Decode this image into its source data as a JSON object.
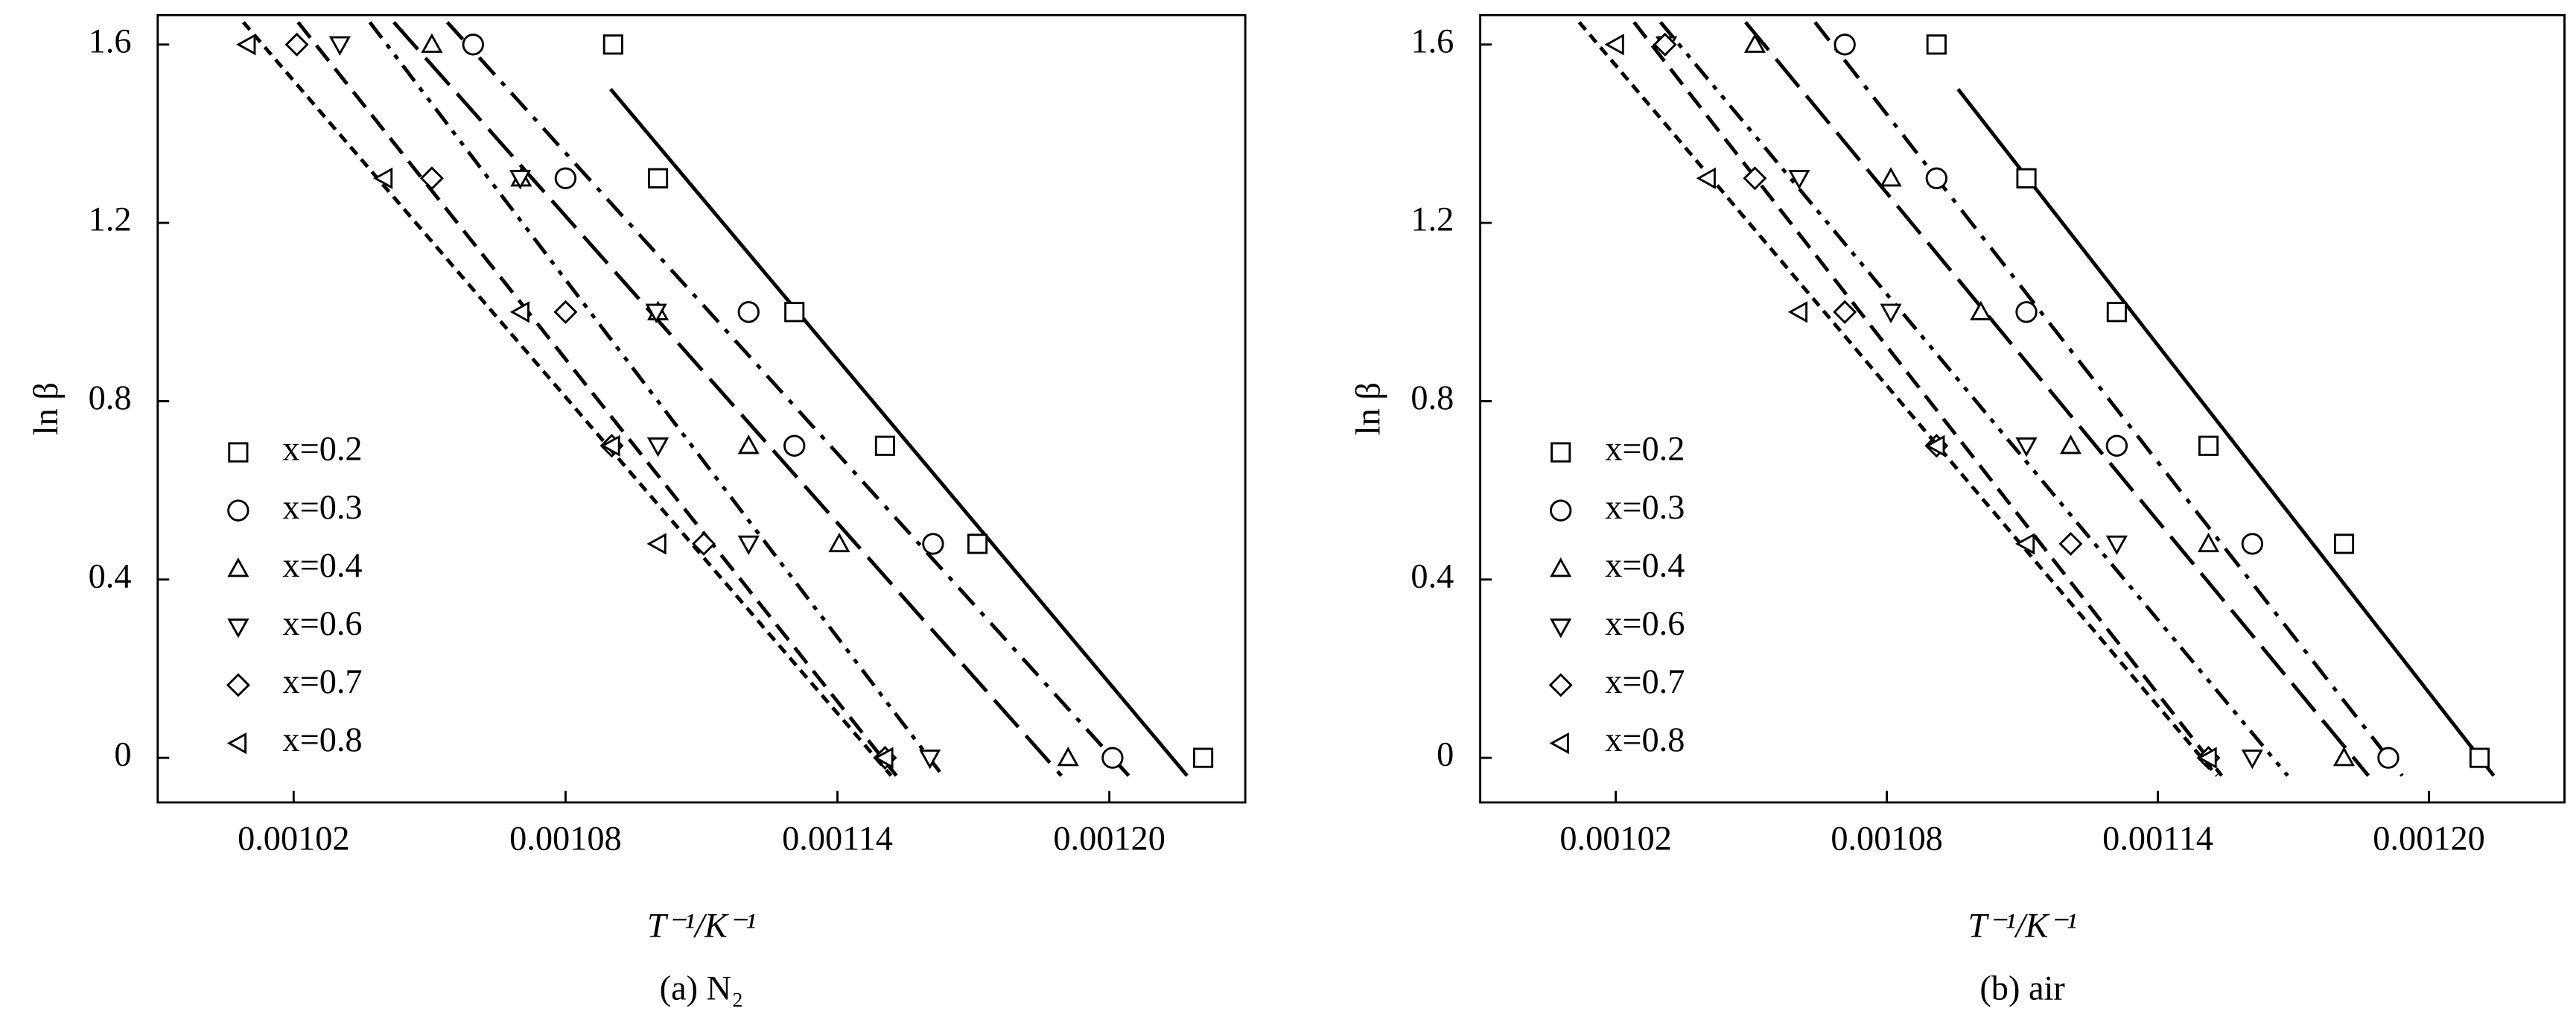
{
  "chart_data": [
    {
      "type": "scatter",
      "caption": "(a) N₂",
      "x_label": "T⁻¹/K⁻¹",
      "y_label": "ln β",
      "xlim": [
        0.00099,
        0.00123
      ],
      "ylim": [
        -0.1,
        1.666
      ],
      "xticks": [
        0.00102,
        0.00108,
        0.00114,
        {
          "value": 0.0012,
          "label": "0.00120"
        }
      ],
      "yticks": [
        0,
        0.4,
        0.8,
        1.2,
        1.6
      ],
      "legend": "lower left",
      "series": [
        {
          "name": "x=0.2",
          "marker": "square",
          "line_style": "solid",
          "color": "#000000",
          "x": [
            0.0010905,
            0.0011004,
            0.0011305,
            0.0011505,
            0.0011709,
            0.0012207
          ],
          "values": [
            1.6,
            1.3,
            1.0,
            0.7,
            0.48,
            0
          ]
        },
        {
          "name": "x=0.3",
          "marker": "circle",
          "line_style": "dash-dot",
          "color": "#000000",
          "x": [
            0.0010596,
            0.00108,
            0.0011204,
            0.0011305,
            0.0011611,
            0.0012007
          ],
          "values": [
            1.6,
            1.3,
            1.0,
            0.7,
            0.48,
            0
          ]
        },
        {
          "name": "x=0.4",
          "marker": "triangle-up",
          "line_style": "long-dash",
          "color": "#000000",
          "x": [
            0.0010505,
            0.0010702,
            0.0011004,
            0.0011204,
            0.0011404,
            0.0011909
          ],
          "values": [
            1.6,
            1.3,
            1.0,
            0.7,
            0.48,
            0
          ]
        },
        {
          "name": "x=0.6",
          "marker": "triangle-down",
          "line_style": "dash-dot-dot",
          "color": "#000000",
          "x": [
            0.0010302,
            0.00107,
            0.0011,
            0.0011004,
            0.0011204,
            0.0011604
          ],
          "values": [
            1.6,
            1.3,
            1.0,
            0.7,
            0.48,
            0
          ]
        },
        {
          "name": "x=0.7",
          "marker": "diamond",
          "line_style": "mid-dash",
          "color": "#000000",
          "x": [
            0.0010207,
            0.0010505,
            0.00108,
            0.0010902,
            0.0011105,
            0.0011505
          ],
          "values": [
            1.6,
            1.3,
            1.0,
            0.7,
            0.48,
            0
          ]
        },
        {
          "name": "x=0.8",
          "marker": "triangle-left",
          "line_style": "short-dash",
          "color": "#000000",
          "x": [
            0.0010098,
            0.00104,
            0.0010702,
            0.0010902,
            0.0011004,
            0.0011505
          ],
          "values": [
            1.6,
            1.3,
            1.0,
            0.7,
            0.48,
            0
          ]
        }
      ]
    },
    {
      "type": "scatter",
      "caption": "(b) air",
      "x_label": "T⁻¹/K⁻¹",
      "y_label": "ln β",
      "xlim": [
        0.00099,
        0.00123
      ],
      "ylim": [
        -0.1,
        1.666
      ],
      "xticks": [
        0.00102,
        0.00108,
        0.00114,
        {
          "value": 0.0012,
          "label": "0.00120"
        }
      ],
      "yticks": [
        0,
        0.4,
        0.8,
        1.2,
        1.6
      ],
      "legend": "lower left",
      "series": [
        {
          "name": "x=0.2",
          "marker": "square",
          "line_style": "solid",
          "color": "#000000",
          "x": [
            0.001091,
            0.0011109,
            0.0011309,
            0.0011512,
            0.0011812,
            0.0012112
          ],
          "values": [
            1.6,
            1.3,
            1.0,
            0.7,
            0.48,
            0
          ]
        },
        {
          "name": "x=0.3",
          "marker": "circle",
          "line_style": "dash-dot",
          "color": "#000000",
          "x": [
            0.0010707,
            0.001091,
            0.0011109,
            0.0011309,
            0.0011609,
            0.001191
          ],
          "values": [
            1.6,
            1.3,
            1.0,
            0.7,
            0.48,
            0
          ]
        },
        {
          "name": "x=0.4",
          "marker": "triangle-up",
          "line_style": "long-dash",
          "color": "#000000",
          "x": [
            0.0010508,
            0.0010809,
            0.0011008,
            0.0011207,
            0.0011512,
            0.0011812
          ],
          "values": [
            1.6,
            1.3,
            1.0,
            0.7,
            0.48,
            0
          ]
        },
        {
          "name": "x=0.6",
          "marker": "triangle-down",
          "line_style": "dash-dot-dot",
          "color": "#000000",
          "x": [
            0.0010312,
            0.0010606,
            0.0010809,
            0.0011109,
            0.0011309,
            0.0011609
          ],
          "values": [
            1.6,
            1.3,
            1.0,
            0.7,
            0.48,
            0
          ]
        },
        {
          "name": "x=0.7",
          "marker": "diamond",
          "line_style": "mid-dash",
          "color": "#000000",
          "x": [
            0.0010309,
            0.0010508,
            0.0010707,
            0.001091,
            0.0011207,
            0.0011512
          ],
          "values": [
            1.6,
            1.3,
            1.0,
            0.7,
            0.48,
            0
          ]
        },
        {
          "name": "x=0.8",
          "marker": "triangle-left",
          "line_style": "short-dash",
          "color": "#000000",
          "x": [
            0.00102,
            0.0010403,
            0.0010606,
            0.001091,
            0.0011109,
            0.0011512
          ],
          "values": [
            1.6,
            1.3,
            1.0,
            0.7,
            0.48,
            0
          ]
        }
      ]
    }
  ]
}
